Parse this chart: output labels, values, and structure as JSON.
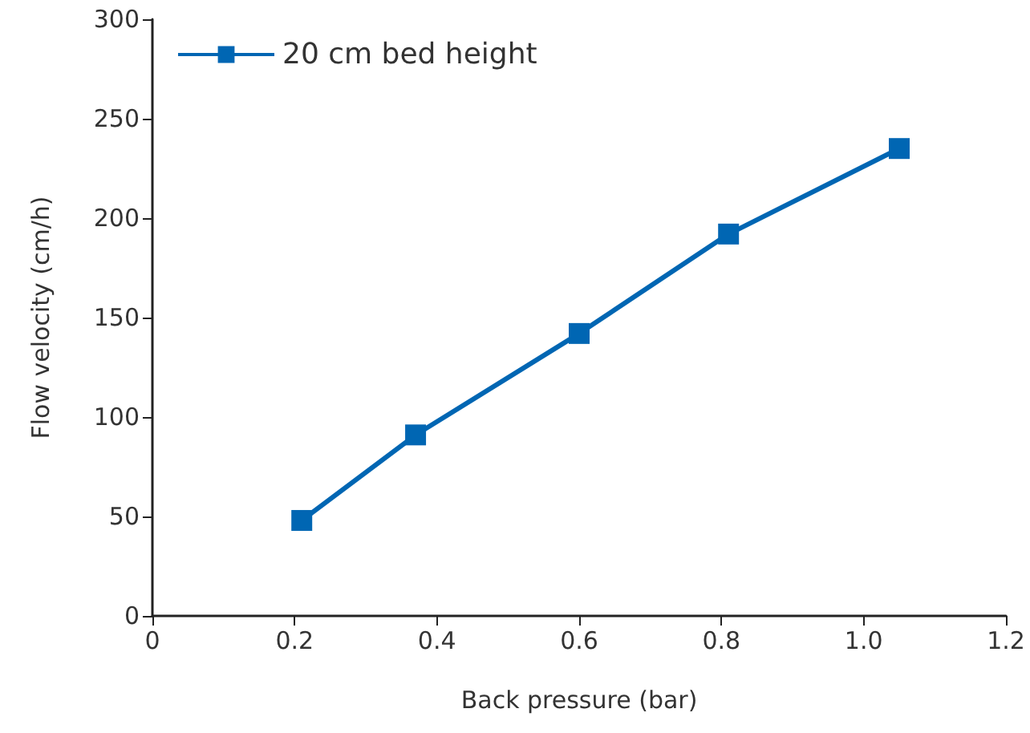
{
  "chart_data": {
    "type": "line",
    "xlabel": "Back pressure (bar)",
    "ylabel": "Flow velocity (cm/h)",
    "x": [
      0.21,
      0.37,
      0.6,
      0.81,
      1.05
    ],
    "series": [
      {
        "name": "20 cm bed height",
        "color": "#0066b3",
        "values": [
          48,
          91,
          142,
          192,
          235
        ]
      }
    ],
    "xlim": [
      0,
      1.2
    ],
    "xticks": [
      0,
      0.2,
      0.4,
      0.6,
      0.8,
      {
        "value": 1,
        "label": "1.0"
      },
      1.2
    ],
    "ylim": [
      0,
      300
    ],
    "yticks": [
      0,
      50,
      100,
      150,
      200,
      250,
      300
    ],
    "grid": false,
    "legend": "top left",
    "marker": "square",
    "line_style": "solid"
  }
}
